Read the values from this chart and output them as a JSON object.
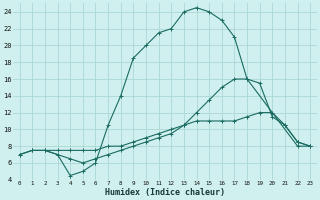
{
  "xlabel": "Humidex (Indice chaleur)",
  "bg_color": "#cff0ee",
  "grid_color": "#aad8d4",
  "line_color": "#1a6b62",
  "xlim": [
    -0.5,
    23.5
  ],
  "ylim": [
    4,
    25
  ],
  "xticks": [
    0,
    1,
    2,
    3,
    4,
    5,
    6,
    7,
    8,
    9,
    10,
    11,
    12,
    13,
    14,
    15,
    16,
    17,
    18,
    19,
    20,
    21,
    22,
    23
  ],
  "yticks": [
    4,
    6,
    8,
    10,
    12,
    14,
    16,
    18,
    20,
    22,
    24
  ],
  "series": [
    {
      "x": [
        2,
        3,
        4,
        5,
        6,
        7,
        8,
        9,
        10,
        11,
        12,
        13,
        14,
        15,
        16,
        17,
        18,
        22,
        23
      ],
      "y": [
        7.5,
        7,
        4.5,
        5,
        6,
        10.5,
        14,
        18.5,
        20,
        21.5,
        22,
        24,
        24.5,
        24,
        23,
        21,
        16,
        8,
        8
      ]
    },
    {
      "x": [
        0,
        1,
        2,
        3,
        4,
        5,
        6,
        7,
        8,
        9,
        10,
        11,
        12,
        13,
        14,
        15,
        16,
        17,
        18,
        19,
        20,
        21,
        22,
        23
      ],
      "y": [
        7,
        7.5,
        7.5,
        7,
        6.5,
        6,
        6.5,
        7,
        7.5,
        8,
        8.5,
        9,
        9.5,
        10.5,
        12,
        13.5,
        15,
        16,
        16,
        15.5,
        11.5,
        10.5,
        8.5,
        8
      ]
    },
    {
      "x": [
        0,
        1,
        2,
        3,
        4,
        5,
        6,
        7,
        8,
        9,
        10,
        11,
        12,
        13,
        14,
        15,
        16,
        17,
        18,
        19,
        20,
        21,
        22,
        23
      ],
      "y": [
        7,
        7.5,
        7.5,
        7.5,
        7.5,
        7.5,
        7.5,
        8,
        8,
        8.5,
        9,
        9.5,
        10,
        10.5,
        11,
        11,
        11,
        11,
        11.5,
        12,
        12,
        10.5,
        8.5,
        8
      ]
    }
  ]
}
